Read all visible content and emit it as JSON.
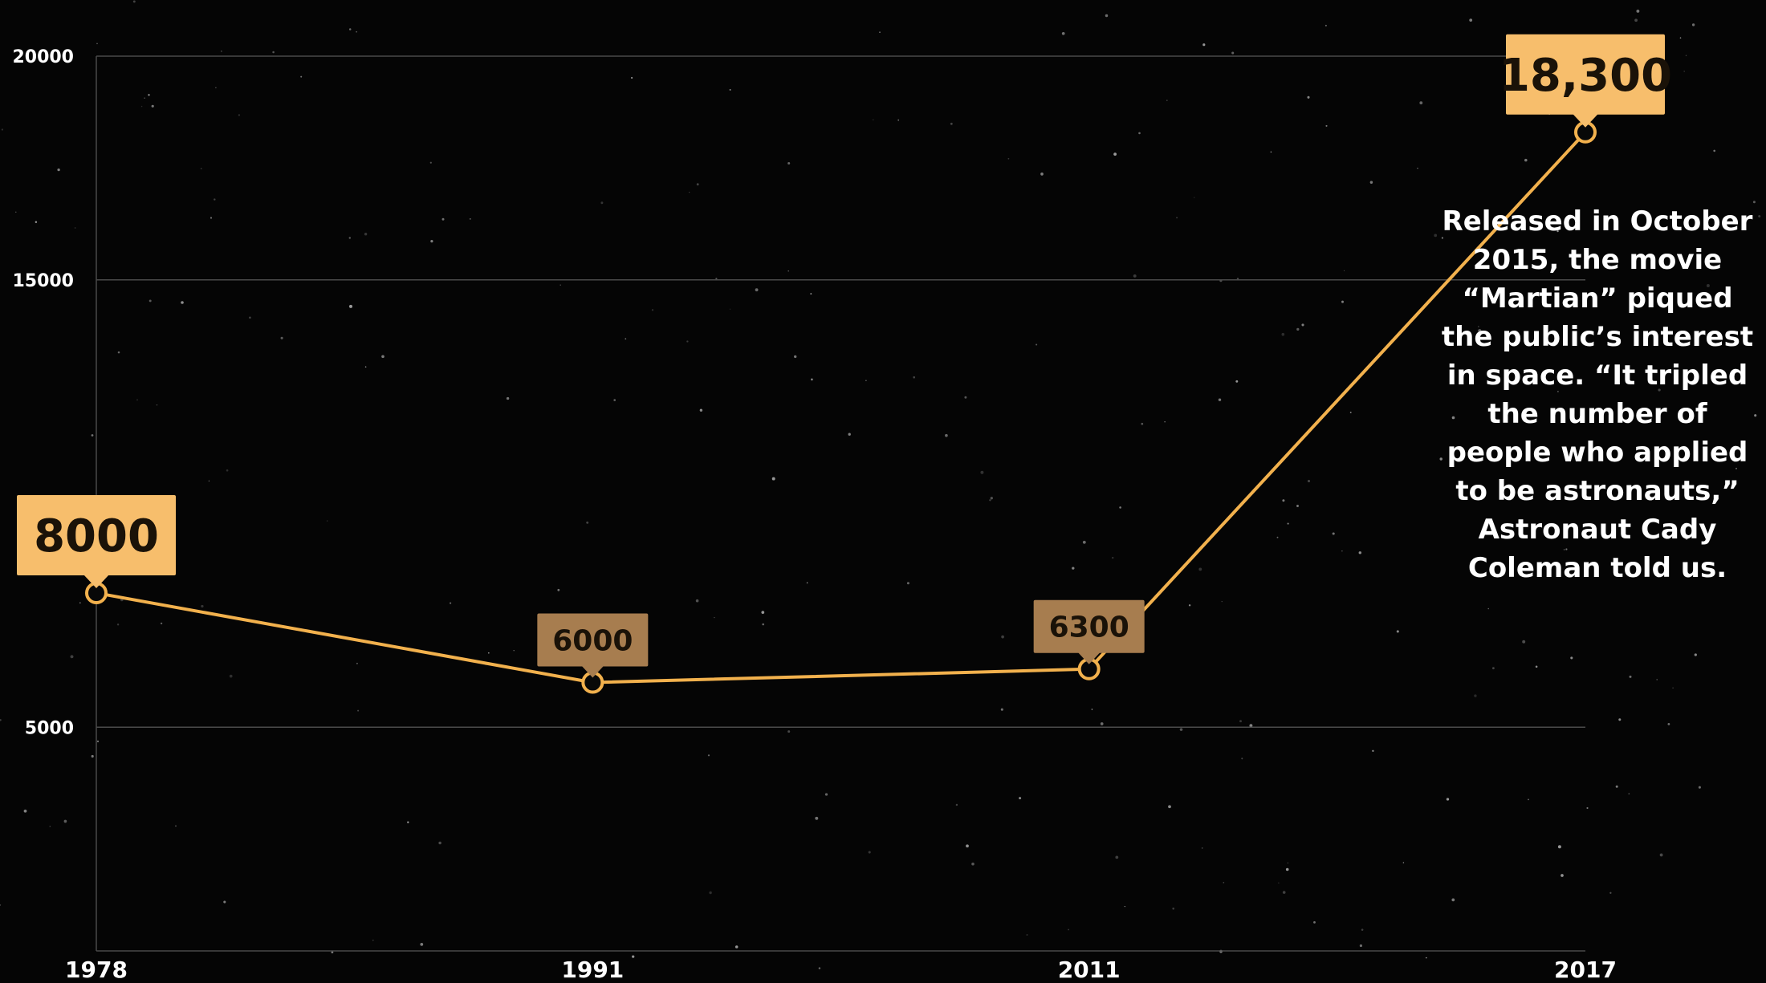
{
  "chart_data": {
    "type": "line",
    "x": [
      "1978",
      "1991",
      "2011",
      "2017"
    ],
    "series": [
      {
        "values": [
          8000,
          6000,
          6300,
          18300
        ]
      }
    ],
    "data_labels": [
      "8000",
      "6000",
      "6300",
      "18,300"
    ],
    "y_ticks": [
      20000,
      15000,
      5000
    ],
    "y_tick_labels": [
      "20000",
      "15000",
      "5000"
    ],
    "ylim": [
      0,
      20000
    ],
    "grid": true,
    "title": "",
    "xlabel": "",
    "ylabel": "",
    "annotation": "Released in October 2015, the movie “Martian” piqued the public’s interest in space. “It tripled the number of people who applied to be astronauts,” Astronaut Cady Coleman told us."
  },
  "colors": {
    "background": "#050505",
    "line": "#f2b14d",
    "gridline": "#4a4a4a",
    "label_bright": "#f7be6c",
    "label_muted": "#a77d4f",
    "label_text": "#1a1208",
    "axis_text": "#ffffff"
  },
  "label_emphasis": [
    "large",
    "small",
    "small",
    "large"
  ]
}
